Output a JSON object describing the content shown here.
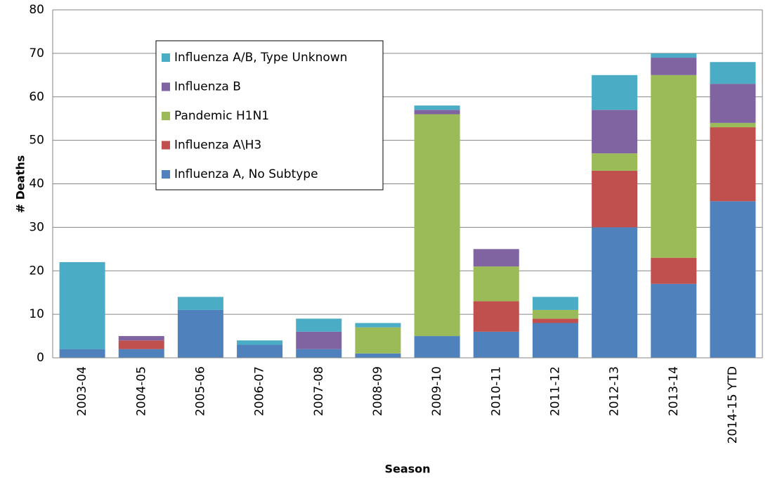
{
  "chart_data": {
    "type": "bar",
    "stacked": true,
    "x_label": "Season",
    "y_label": "# Deaths",
    "categories": [
      "2003-04",
      "2004-05",
      "2005-06",
      "2006-07",
      "2007-08",
      "2008-09",
      "2009-10",
      "2010-11",
      "2011-12",
      "2012-13",
      "2013-14",
      "2014-15 YTD"
    ],
    "series": [
      {
        "name": "Influenza A, No Subtype",
        "color": "#4f81bd",
        "values": [
          2,
          2,
          11,
          3,
          2,
          1,
          5,
          6,
          8,
          30,
          17,
          36
        ]
      },
      {
        "name": "Influenza A\\H3",
        "color": "#c0504d",
        "values": [
          0,
          2,
          0,
          0,
          0,
          0,
          0,
          7,
          1,
          13,
          6,
          17
        ]
      },
      {
        "name": "Pandemic H1N1",
        "color": "#9bbb59",
        "values": [
          0,
          0,
          0,
          0,
          0,
          6,
          51,
          8,
          2,
          4,
          42,
          1
        ]
      },
      {
        "name": "Influenza B",
        "color": "#8064a2",
        "values": [
          0,
          1,
          0,
          0,
          4,
          0,
          1,
          4,
          0,
          10,
          4,
          9
        ]
      },
      {
        "name": "Influenza A/B, Type Unknown",
        "color": "#4bacc6",
        "values": [
          20,
          0,
          3,
          1,
          3,
          1,
          1,
          0,
          3,
          8,
          1,
          5
        ]
      }
    ],
    "ylim": [
      0,
      80
    ],
    "yticks": [
      0,
      10,
      20,
      30,
      40,
      50,
      60,
      70,
      80
    ],
    "grid": true,
    "legend": "upper left"
  }
}
